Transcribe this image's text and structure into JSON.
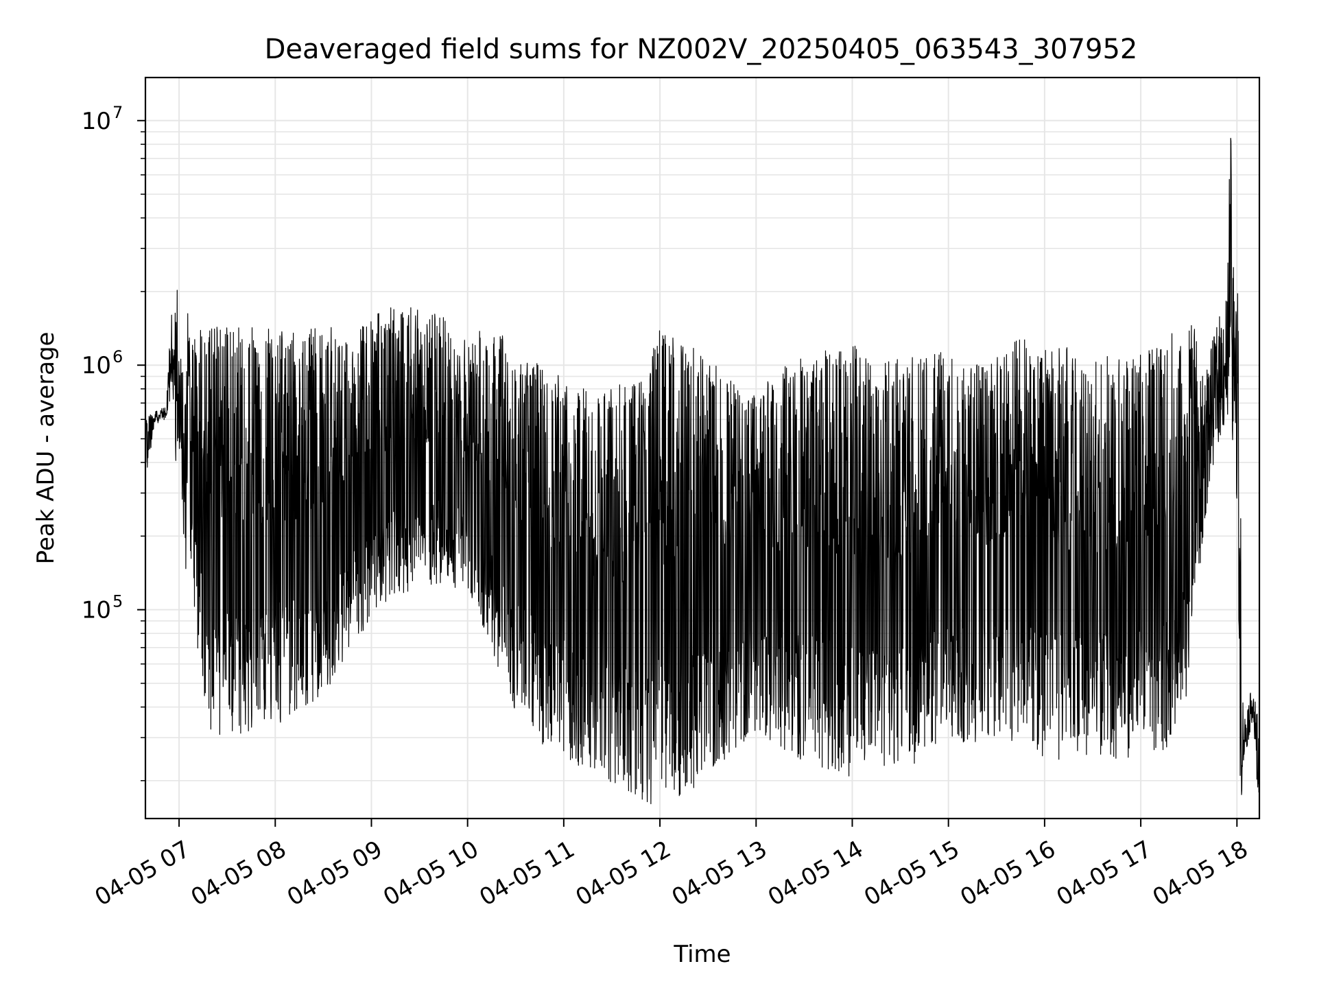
{
  "chart_data": {
    "type": "line",
    "title": "Deaveraged field sums for NZ002V_20250405_063543_307952",
    "xlabel": "Time",
    "ylabel": "Peak ADU - average",
    "yscale": "log",
    "grid": true,
    "x_range": [
      "04-05 06:39",
      "04-05 18:14"
    ],
    "ylim": [
      14000,
      15000000
    ],
    "x_ticks": [
      "04-05 07",
      "04-05 08",
      "04-05 09",
      "04-05 10",
      "04-05 11",
      "04-05 12",
      "04-05 13",
      "04-05 14",
      "04-05 15",
      "04-05 16",
      "04-05 17",
      "04-05 18"
    ],
    "y_ticks": [
      {
        "value": 100000,
        "base": "10",
        "exp": "5"
      },
      {
        "value": 1000000,
        "base": "10",
        "exp": "6"
      },
      {
        "value": 10000000,
        "base": "10",
        "exp": "7"
      }
    ],
    "line_color": "#000000",
    "series": [
      {
        "x": [
          "04-05 06:39",
          "04-05 06:45",
          "04-05 06:52",
          "04-05 06:55",
          "04-05 06:58",
          "04-05 07:01",
          "04-05 07:04",
          "04-05 07:08",
          "04-05 07:12",
          "04-05 07:16",
          "04-05 07:20",
          "04-05 07:30",
          "04-05 07:45",
          "04-05 08:00",
          "04-05 08:15",
          "04-05 08:30",
          "04-05 08:45",
          "04-05 09:00",
          "04-05 09:15",
          "04-05 09:30",
          "04-05 09:45",
          "04-05 10:00",
          "04-05 10:15",
          "04-05 10:30",
          "04-05 10:45",
          "04-05 11:00",
          "04-05 11:15",
          "04-05 11:30",
          "04-05 11:45",
          "04-05 12:00",
          "04-05 12:15",
          "04-05 12:30",
          "04-05 12:45",
          "04-05 13:00",
          "04-05 13:15",
          "04-05 13:30",
          "04-05 13:45",
          "04-05 14:00",
          "04-05 14:15",
          "04-05 14:30",
          "04-05 14:45",
          "04-05 15:00",
          "04-05 15:15",
          "04-05 15:30",
          "04-05 15:45",
          "04-05 16:00",
          "04-05 16:15",
          "04-05 16:30",
          "04-05 16:45",
          "04-05 17:00",
          "04-05 17:15",
          "04-05 17:28",
          "04-05 17:33",
          "04-05 17:40",
          "04-05 17:47",
          "04-05 17:53",
          "04-05 17:56",
          "04-05 17:58",
          "04-05 18:00",
          "04-05 18:02",
          "04-05 18:04",
          "04-05 18:06",
          "04-05 18:10",
          "04-05 18:14"
        ],
        "base": [
          400000,
          600000,
          620000,
          900000,
          700000,
          500000,
          250000,
          150000,
          90000,
          60000,
          48000,
          45000,
          47000,
          50000,
          55000,
          65000,
          85000,
          120000,
          150000,
          160000,
          170000,
          150000,
          90000,
          55000,
          42000,
          36000,
          32000,
          29000,
          26000,
          25000,
          27000,
          32000,
          38000,
          45000,
          40000,
          36000,
          34000,
          32000,
          33000,
          34000,
          36000,
          40000,
          42000,
          44000,
          40000,
          37000,
          36000,
          36000,
          37000,
          38000,
          40000,
          60000,
          140000,
          350000,
          650000,
          800000,
          900000,
          800000,
          400000,
          30000,
          26000,
          30000,
          40000,
          16000
        ],
        "peak": [
          700000,
          700000,
          700000,
          2000000,
          4500000,
          1500000,
          1900000,
          1300000,
          1400000,
          1450000,
          1450000,
          1450000,
          1450000,
          1400000,
          1400000,
          1450000,
          1400000,
          1600000,
          1800000,
          1700000,
          1600000,
          1300000,
          1500000,
          1200000,
          1000000,
          900000,
          800000,
          800000,
          900000,
          1400000,
          1300000,
          1100000,
          900000,
          800000,
          1000000,
          1100000,
          1200000,
          1300000,
          1000000,
          1100000,
          1200000,
          1100000,
          1000000,
          1100000,
          1300000,
          1200000,
          1200000,
          1100000,
          1100000,
          1200000,
          1300000,
          1500000,
          1500000,
          1500000,
          2000000,
          3000000,
          10000000,
          4000000,
          3000000,
          600000,
          40000,
          45000,
          55000,
          45000
        ]
      }
    ]
  }
}
